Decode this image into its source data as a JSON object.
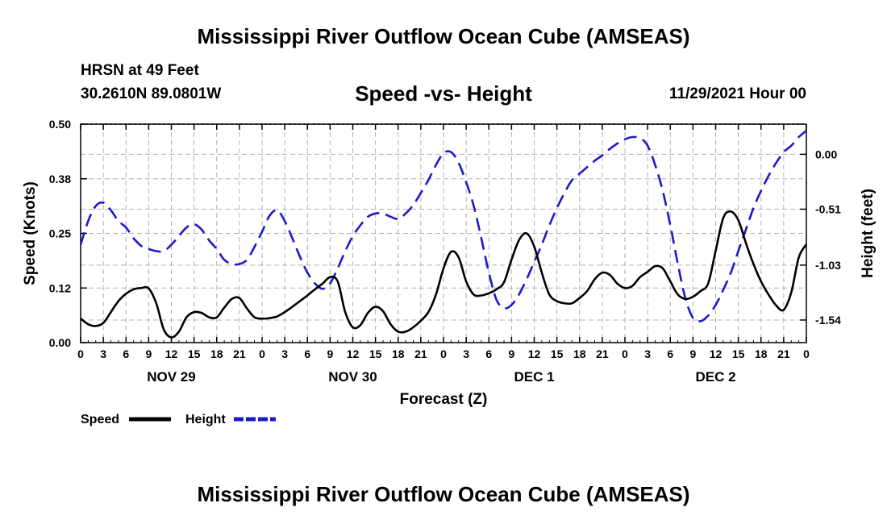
{
  "header": {
    "title": "Mississippi River Outflow Ocean Cube (AMSEAS)",
    "station": "HRSN at 49 Feet",
    "coords": "30.2610N  89.0801W",
    "subtitle": "Speed -vs- Height",
    "datetime": "11/29/2021 Hour 00"
  },
  "footer": {
    "title": "Mississippi River Outflow Ocean Cube (AMSEAS)"
  },
  "colors": {
    "speed": "#000000",
    "height": "#1a1acc",
    "grid": "#b0b0b0"
  },
  "chart_data": {
    "type": "line",
    "title": "Speed -vs- Height",
    "xlabel": "Forecast (Z)",
    "ylabel": "Speed (Knots)",
    "ylabel_right": "Height (feet)",
    "x_range": [
      0,
      96
    ],
    "ylim": [
      0,
      0.5
    ],
    "ylim_right": [
      -1.75,
      0.28
    ],
    "y_ticks": [
      "0.00",
      "0.12",
      "0.25",
      "0.38",
      "0.50"
    ],
    "y_tick_values": [
      0,
      0.125,
      0.25,
      0.375,
      0.5
    ],
    "y_right_ticks": [
      "0.00",
      "-0.51",
      "-1.03",
      "-1.54"
    ],
    "y_right_tick_values": [
      0,
      -0.51,
      -1.03,
      -1.54
    ],
    "x_ticks": [
      "0",
      "3",
      "6",
      "9",
      "12",
      "15",
      "18",
      "21",
      "0",
      "3",
      "6",
      "9",
      "12",
      "15",
      "18",
      "21",
      "0",
      "3",
      "6",
      "9",
      "12",
      "15",
      "18",
      "21",
      "0",
      "3",
      "6",
      "9",
      "12",
      "15",
      "18",
      "21",
      "0"
    ],
    "day_labels": [
      {
        "label": "NOV 29",
        "hour": 12
      },
      {
        "label": "NOV 30",
        "hour": 36
      },
      {
        "label": "DEC 1",
        "hour": 60
      },
      {
        "label": "DEC 2",
        "hour": 84
      }
    ],
    "legend": [
      {
        "name": "Speed",
        "color": "#000000",
        "dash": false
      },
      {
        "name": "Height",
        "color": "#1a1acc",
        "dash": true
      }
    ],
    "series": [
      {
        "name": "Speed",
        "axis": "left",
        "x": [
          0,
          1,
          2,
          3,
          4,
          5,
          6,
          7,
          8,
          9,
          10,
          11,
          12,
          13,
          14,
          15,
          16,
          17,
          18,
          19,
          20,
          21,
          22,
          23,
          24,
          25,
          26,
          27,
          28,
          29,
          30,
          31,
          32,
          33,
          34,
          35,
          36,
          37,
          38,
          39,
          40,
          41,
          42,
          43,
          44,
          45,
          46,
          47,
          48,
          49,
          50,
          51,
          52,
          53,
          54,
          55,
          56,
          57,
          58,
          59,
          60,
          61,
          62,
          63,
          64,
          65,
          66,
          67,
          68,
          69,
          70,
          71,
          72,
          73,
          74,
          75,
          76,
          77,
          78,
          79,
          80,
          81,
          82,
          83,
          84,
          85,
          86,
          87,
          88,
          89,
          90,
          91,
          92,
          93,
          94,
          95,
          96
        ],
        "values": [
          0.055,
          0.042,
          0.038,
          0.045,
          0.07,
          0.095,
          0.112,
          0.122,
          0.125,
          0.124,
          0.09,
          0.03,
          0.012,
          0.025,
          0.058,
          0.07,
          0.068,
          0.058,
          0.058,
          0.08,
          0.1,
          0.102,
          0.078,
          0.058,
          0.055,
          0.056,
          0.06,
          0.07,
          0.082,
          0.095,
          0.108,
          0.122,
          0.135,
          0.15,
          0.14,
          0.07,
          0.035,
          0.04,
          0.068,
          0.082,
          0.072,
          0.042,
          0.025,
          0.025,
          0.035,
          0.05,
          0.07,
          0.11,
          0.17,
          0.208,
          0.195,
          0.14,
          0.11,
          0.108,
          0.113,
          0.122,
          0.138,
          0.19,
          0.235,
          0.25,
          0.22,
          0.16,
          0.11,
          0.095,
          0.09,
          0.09,
          0.102,
          0.118,
          0.145,
          0.16,
          0.155,
          0.135,
          0.125,
          0.13,
          0.15,
          0.162,
          0.175,
          0.17,
          0.14,
          0.11,
          0.1,
          0.105,
          0.118,
          0.135,
          0.21,
          0.285,
          0.3,
          0.28,
          0.228,
          0.18,
          0.14,
          0.11,
          0.085,
          0.075,
          0.115,
          0.195,
          0.225
        ]
      },
      {
        "name": "Height",
        "axis": "right",
        "x": [
          0,
          1,
          2,
          3,
          4,
          5,
          6,
          7,
          8,
          9,
          10,
          11,
          12,
          13,
          14,
          15,
          16,
          17,
          18,
          19,
          20,
          21,
          22,
          23,
          24,
          25,
          26,
          27,
          28,
          29,
          30,
          31,
          32,
          33,
          34,
          35,
          36,
          37,
          38,
          39,
          40,
          41,
          42,
          43,
          44,
          45,
          46,
          47,
          48,
          49,
          50,
          51,
          52,
          53,
          54,
          55,
          56,
          57,
          58,
          59,
          60,
          61,
          62,
          63,
          64,
          65,
          66,
          67,
          68,
          69,
          70,
          71,
          72,
          73,
          74,
          75,
          76,
          77,
          78,
          79,
          80,
          81,
          82,
          83,
          84,
          85,
          86,
          87,
          88,
          89,
          90,
          91,
          92,
          93,
          94,
          95,
          96
        ],
        "values": [
          -0.84,
          -0.62,
          -0.48,
          -0.45,
          -0.52,
          -0.62,
          -0.68,
          -0.78,
          -0.85,
          -0.88,
          -0.9,
          -0.9,
          -0.84,
          -0.76,
          -0.68,
          -0.65,
          -0.7,
          -0.8,
          -0.88,
          -0.98,
          -1.02,
          -1.02,
          -0.98,
          -0.86,
          -0.72,
          -0.57,
          -0.52,
          -0.62,
          -0.78,
          -0.95,
          -1.1,
          -1.2,
          -1.25,
          -1.2,
          -1.06,
          -0.9,
          -0.76,
          -0.66,
          -0.58,
          -0.55,
          -0.55,
          -0.58,
          -0.6,
          -0.55,
          -0.47,
          -0.36,
          -0.24,
          -0.1,
          0.01,
          0.02,
          -0.08,
          -0.26,
          -0.48,
          -0.78,
          -1.1,
          -1.35,
          -1.43,
          -1.4,
          -1.3,
          -1.16,
          -1.0,
          -0.84,
          -0.66,
          -0.5,
          -0.36,
          -0.24,
          -0.18,
          -0.12,
          -0.06,
          -0.01,
          0.05,
          0.1,
          0.14,
          0.16,
          0.15,
          0.08,
          -0.1,
          -0.34,
          -0.66,
          -1.02,
          -1.34,
          -1.52,
          -1.55,
          -1.5,
          -1.4,
          -1.26,
          -1.1,
          -0.9,
          -0.7,
          -0.5,
          -0.34,
          -0.2,
          -0.08,
          0.02,
          0.08,
          0.16,
          0.22
        ]
      }
    ]
  }
}
